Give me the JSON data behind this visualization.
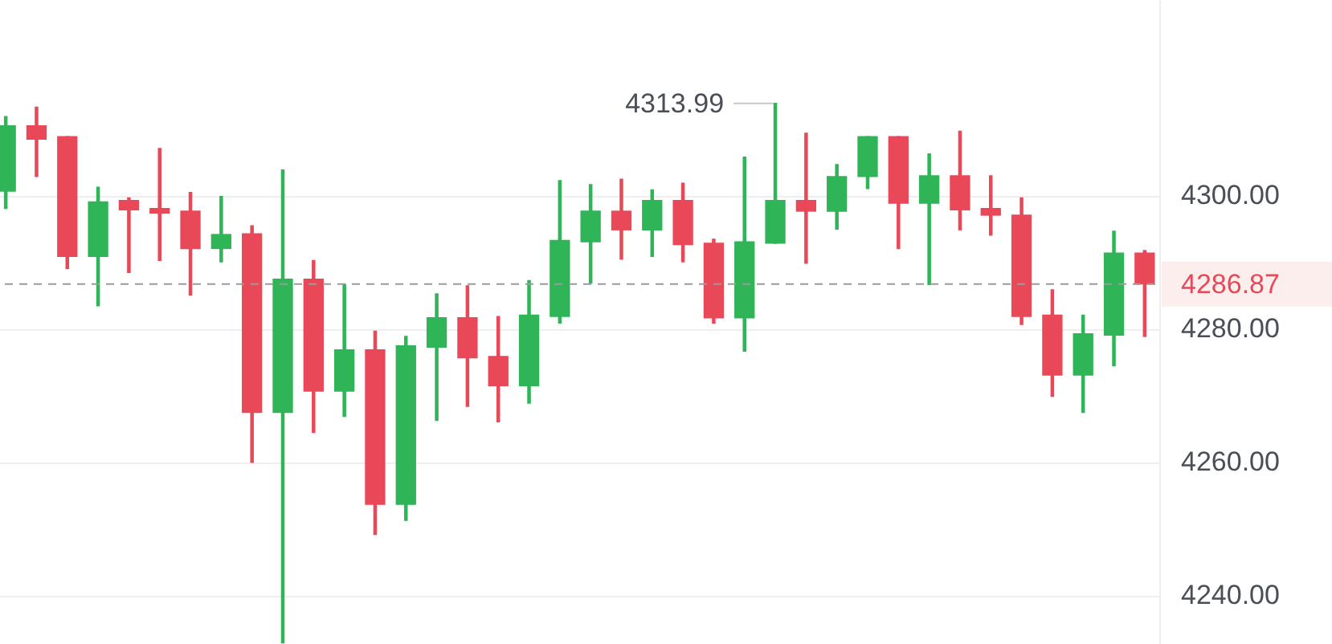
{
  "chart_data": {
    "type": "candlestick",
    "categories": [
      null,
      null,
      null,
      null,
      null,
      null,
      null,
      null,
      null,
      null,
      null,
      null,
      null,
      null,
      null,
      null,
      null,
      null,
      null,
      null,
      null,
      null,
      null,
      null,
      null,
      null,
      null,
      null,
      null,
      null,
      null,
      null,
      null,
      null,
      null,
      null,
      null,
      null
    ],
    "ohlc": [
      [
        4300.8,
        4312.0,
        4298.2,
        4310.6
      ],
      [
        4310.6,
        4313.4,
        4303.0,
        4308.6
      ],
      [
        4309.0,
        4309.0,
        4289.2,
        4291.0
      ],
      [
        4291.0,
        4301.4,
        4283.6,
        4299.2
      ],
      [
        4299.4,
        4299.8,
        4288.6,
        4298.0
      ],
      [
        4298.2,
        4307.2,
        4290.4,
        4297.5
      ],
      [
        4297.8,
        4300.6,
        4285.2,
        4292.2
      ],
      [
        4292.2,
        4300.0,
        4290.2,
        4294.3
      ],
      [
        4294.4,
        4295.6,
        4260.1,
        4267.6
      ],
      [
        4267.6,
        4304.0,
        4233.0,
        4287.6
      ],
      [
        4287.6,
        4290.4,
        4264.6,
        4270.8
      ],
      [
        4270.8,
        4286.8,
        4267.0,
        4277.0
      ],
      [
        4277.0,
        4279.8,
        4249.3,
        4253.8
      ],
      [
        4253.8,
        4279.0,
        4251.4,
        4277.6
      ],
      [
        4277.4,
        4285.4,
        4266.4,
        4281.8
      ],
      [
        4281.8,
        4286.6,
        4268.5,
        4275.8
      ],
      [
        4276.0,
        4282.0,
        4266.2,
        4271.6
      ],
      [
        4271.6,
        4287.4,
        4269.0,
        4282.2
      ],
      [
        4282.0,
        4302.4,
        4281.0,
        4293.4
      ],
      [
        4293.2,
        4301.8,
        4287.0,
        4297.8
      ],
      [
        4297.8,
        4302.6,
        4290.6,
        4295.0
      ],
      [
        4295.0,
        4301.0,
        4291.0,
        4299.4
      ],
      [
        4299.4,
        4302.0,
        4290.2,
        4292.8
      ],
      [
        4293.0,
        4293.6,
        4281.0,
        4281.8
      ],
      [
        4281.8,
        4305.9,
        4276.8,
        4293.2
      ],
      [
        4293.0,
        4313.99,
        4293.0,
        4299.4
      ],
      [
        4299.4,
        4309.5,
        4290.0,
        4297.8
      ],
      [
        4297.8,
        4304.8,
        4295.1,
        4303.0
      ],
      [
        4303.0,
        4309.0,
        4301.2,
        4309.0
      ],
      [
        4309.0,
        4309.0,
        4292.2,
        4299.0
      ],
      [
        4299.0,
        4306.4,
        4286.8,
        4303.1
      ],
      [
        4303.1,
        4309.8,
        4295.0,
        4298.0
      ],
      [
        4298.2,
        4303.1,
        4294.2,
        4297.2
      ],
      [
        4297.2,
        4299.8,
        4280.8,
        4282.0
      ],
      [
        4282.2,
        4286.0,
        4270.0,
        4273.2
      ],
      [
        4273.2,
        4282.2,
        4267.6,
        4279.4
      ],
      [
        4279.2,
        4294.8,
        4274.6,
        4291.5
      ],
      [
        4291.5,
        4291.9,
        4279.0,
        4286.87
      ]
    ],
    "colors": [
      "#2fb457",
      "#e84857",
      "#e84857",
      "#2fb457",
      "#e84857",
      "#e84857",
      "#e84857",
      "#2fb457",
      "#e84857",
      "#2fb457",
      "#e84857",
      "#2fb457",
      "#e84857",
      "#2fb457",
      "#2fb457",
      "#e84857",
      "#e84857",
      "#2fb457",
      "#2fb457",
      "#2fb457",
      "#e84857",
      "#2fb457",
      "#e84857",
      "#e84857",
      "#2fb457",
      "#2fb457",
      "#e84857",
      "#2fb457",
      "#2fb457",
      "#e84857",
      "#2fb457",
      "#e84857",
      "#e84857",
      "#e84857",
      "#e84857",
      "#2fb457",
      "#2fb457",
      "#e84857"
    ],
    "ylim": [
      4232.9,
      4329.2
    ],
    "yticks": [
      {
        "value": 4240,
        "label": "4240.00"
      },
      {
        "value": 4260,
        "label": "4260.00"
      },
      {
        "value": 4280,
        "label": "4280.00"
      },
      {
        "value": 4300,
        "label": "4300.00"
      }
    ],
    "ref_lines": [
      {
        "axis": "y",
        "value": 4286.87,
        "label": "4286.87",
        "color": "#9a9a9a",
        "line_style": "dashed"
      }
    ],
    "annotations": [
      "4313.99"
    ],
    "grid": "y",
    "legend": false,
    "tick_labels": "y"
  }
}
